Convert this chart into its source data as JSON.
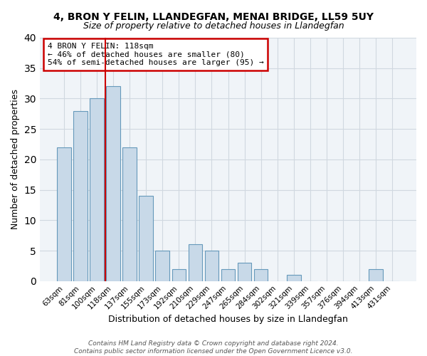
{
  "title": "4, BRON Y FELIN, LLANDEGFAN, MENAI BRIDGE, LL59 5UY",
  "subtitle": "Size of property relative to detached houses in Llandegfan",
  "xlabel": "Distribution of detached houses by size in Llandegfan",
  "ylabel": "Number of detached properties",
  "categories": [
    "63sqm",
    "81sqm",
    "100sqm",
    "118sqm",
    "137sqm",
    "155sqm",
    "173sqm",
    "192sqm",
    "210sqm",
    "229sqm",
    "247sqm",
    "265sqm",
    "284sqm",
    "302sqm",
    "321sqm",
    "339sqm",
    "357sqm",
    "376sqm",
    "394sqm",
    "413sqm",
    "431sqm"
  ],
  "values": [
    22,
    28,
    30,
    32,
    22,
    14,
    5,
    2,
    6,
    5,
    2,
    3,
    2,
    0,
    1,
    0,
    0,
    0,
    0,
    2,
    0
  ],
  "bar_color": "#c8d9e8",
  "bar_edge_color": "#6699bb",
  "vline_x_index": 3,
  "vline_color": "#cc0000",
  "ylim": [
    0,
    40
  ],
  "yticks": [
    0,
    5,
    10,
    15,
    20,
    25,
    30,
    35,
    40
  ],
  "annotation_line1": "4 BRON Y FELIN: 118sqm",
  "annotation_line2": "← 46% of detached houses are smaller (80)",
  "annotation_line3": "54% of semi-detached houses are larger (95) →",
  "annotation_box_edge": "#cc0000",
  "footer": "Contains HM Land Registry data © Crown copyright and database right 2024.\nContains public sector information licensed under the Open Government Licence v3.0.",
  "grid_color": "#d0d8e0",
  "background_color": "#f0f4f8"
}
